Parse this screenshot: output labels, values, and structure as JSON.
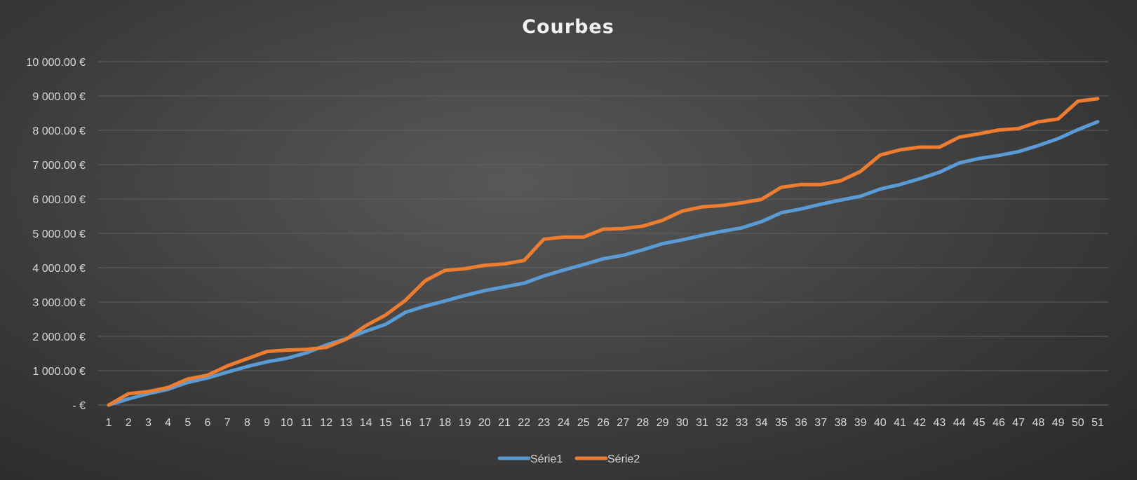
{
  "chart_data": {
    "type": "line",
    "title": "Courbes",
    "xlabel": "",
    "ylabel": "",
    "x": [
      1,
      2,
      3,
      4,
      5,
      6,
      7,
      8,
      9,
      10,
      11,
      12,
      13,
      14,
      15,
      16,
      17,
      18,
      19,
      20,
      21,
      22,
      23,
      24,
      25,
      26,
      27,
      28,
      29,
      30,
      31,
      32,
      33,
      34,
      35,
      36,
      37,
      38,
      39,
      40,
      41,
      42,
      43,
      44,
      45,
      46,
      47,
      48,
      49,
      50,
      51
    ],
    "ylim": [
      0,
      10000
    ],
    "yticks": [
      0,
      1000,
      2000,
      3000,
      4000,
      5000,
      6000,
      7000,
      8000,
      9000,
      10000
    ],
    "ytick_labels": [
      "-  €",
      "1 000.00 €",
      "2 000.00 €",
      "3 000.00 €",
      "4 000.00 €",
      "5 000.00 €",
      "6 000.00 €",
      "7 000.00 €",
      "8 000.00 €",
      "9 000.00 €",
      "10 000.00 €"
    ],
    "grid": true,
    "legend_position": "bottom",
    "series": [
      {
        "name": "Série1",
        "color": "#5b9bd5",
        "values": [
          0,
          180,
          330,
          460,
          660,
          790,
          960,
          1120,
          1260,
          1360,
          1520,
          1750,
          1930,
          2150,
          2350,
          2700,
          2880,
          3030,
          3190,
          3330,
          3440,
          3550,
          3760,
          3930,
          4090,
          4260,
          4360,
          4520,
          4700,
          4810,
          4940,
          5060,
          5160,
          5340,
          5600,
          5710,
          5850,
          5970,
          6080,
          6290,
          6420,
          6590,
          6780,
          7050,
          7180,
          7270,
          7380,
          7560,
          7760,
          8020,
          8250
        ]
      },
      {
        "name": "Série2",
        "color": "#ed7d31",
        "values": [
          0,
          330,
          390,
          510,
          760,
          870,
          1140,
          1350,
          1560,
          1600,
          1620,
          1680,
          1920,
          2310,
          2620,
          3050,
          3620,
          3920,
          3970,
          4070,
          4110,
          4210,
          4830,
          4890,
          4890,
          5120,
          5140,
          5210,
          5380,
          5650,
          5770,
          5810,
          5890,
          5990,
          6340,
          6420,
          6420,
          6530,
          6800,
          7280,
          7430,
          7510,
          7510,
          7800,
          7900,
          8010,
          8050,
          8250,
          8330,
          8850,
          8920
        ]
      }
    ]
  }
}
